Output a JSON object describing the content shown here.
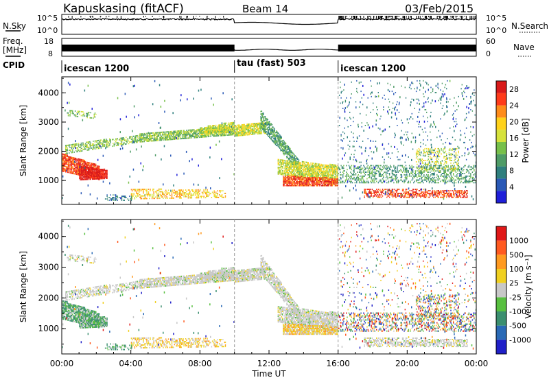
{
  "header": {
    "site": "Kapuskasing (fitACF)",
    "beam": "Beam 14",
    "date": "03/Feb/2015"
  },
  "strip_sky": {
    "left_label": "N.Sky",
    "right_label": "N.Search",
    "left_ticks": [
      "10^5",
      "10^0"
    ],
    "right_ticks": [
      "10^5",
      "10^0"
    ]
  },
  "strip_freq": {
    "left_label_1": "Freq.",
    "left_label_2": "[MHz]",
    "right_label": "Nave",
    "left_ticks": [
      "18",
      "8"
    ],
    "right_ticks": [
      "60",
      "0"
    ]
  },
  "cpid": {
    "label": "CPID",
    "segments": [
      {
        "name": "icescan 1200",
        "start_hour": 0
      },
      {
        "name": "tau (fast) 503",
        "start_hour": 10
      },
      {
        "name": "icescan 1200",
        "start_hour": 16
      }
    ]
  },
  "chart_data": [
    {
      "type": "heatmap",
      "name": "power",
      "xlabel": "Time UT",
      "ylabel": "Slant Range [km]",
      "x_ticks": [
        "00:00",
        "04:00",
        "08:00",
        "12:00",
        "16:00",
        "20:00",
        "00:00"
      ],
      "x_range_hours": [
        0,
        24
      ],
      "y_range_km": [
        180,
        4550
      ],
      "y_ticks": [
        1000,
        2000,
        3000,
        4000
      ],
      "y_tick_labels": [
        "1000",
        "2000",
        "3000",
        "4000"
      ],
      "colorbar": {
        "label": "Power [dB]",
        "range": [
          0,
          30
        ],
        "ticks": [
          "4",
          "8",
          "12",
          "16",
          "20",
          "24",
          "28"
        ],
        "colors": [
          "#1f1fd9",
          "#2a59b6",
          "#2f7f7e",
          "#4f9c67",
          "#77c04a",
          "#d6e23c",
          "#ffd21a",
          "#ff8c1a",
          "#ff3b1a",
          "#d91a1a"
        ]
      },
      "vertical_markers_hours": [
        10,
        16
      ]
    },
    {
      "type": "heatmap",
      "name": "velocity",
      "xlabel": "Time UT",
      "ylabel": "Slant Range [km]",
      "x_ticks": [
        "00:00",
        "04:00",
        "08:00",
        "12:00",
        "16:00",
        "20:00",
        "00:00"
      ],
      "x_range_hours": [
        0,
        24
      ],
      "y_range_km": [
        180,
        4550
      ],
      "y_ticks": [
        1000,
        2000,
        3000,
        4000
      ],
      "y_tick_labels": [
        "1000",
        "2000",
        "3000",
        "4000"
      ],
      "colorbar": {
        "label": "Velocity [m s⁻¹]",
        "ticks": [
          "1000",
          "500",
          "100",
          "25",
          "-25",
          "-100",
          "-500",
          "-1000"
        ],
        "colors": [
          "#2020c8",
          "#2a6ab6",
          "#3b8f6f",
          "#58c040",
          "#c8c8c8",
          "#f0d020",
          "#ff9a20",
          "#ff5a20",
          "#e01818"
        ]
      },
      "vertical_markers_hours": [
        10,
        16
      ]
    }
  ]
}
